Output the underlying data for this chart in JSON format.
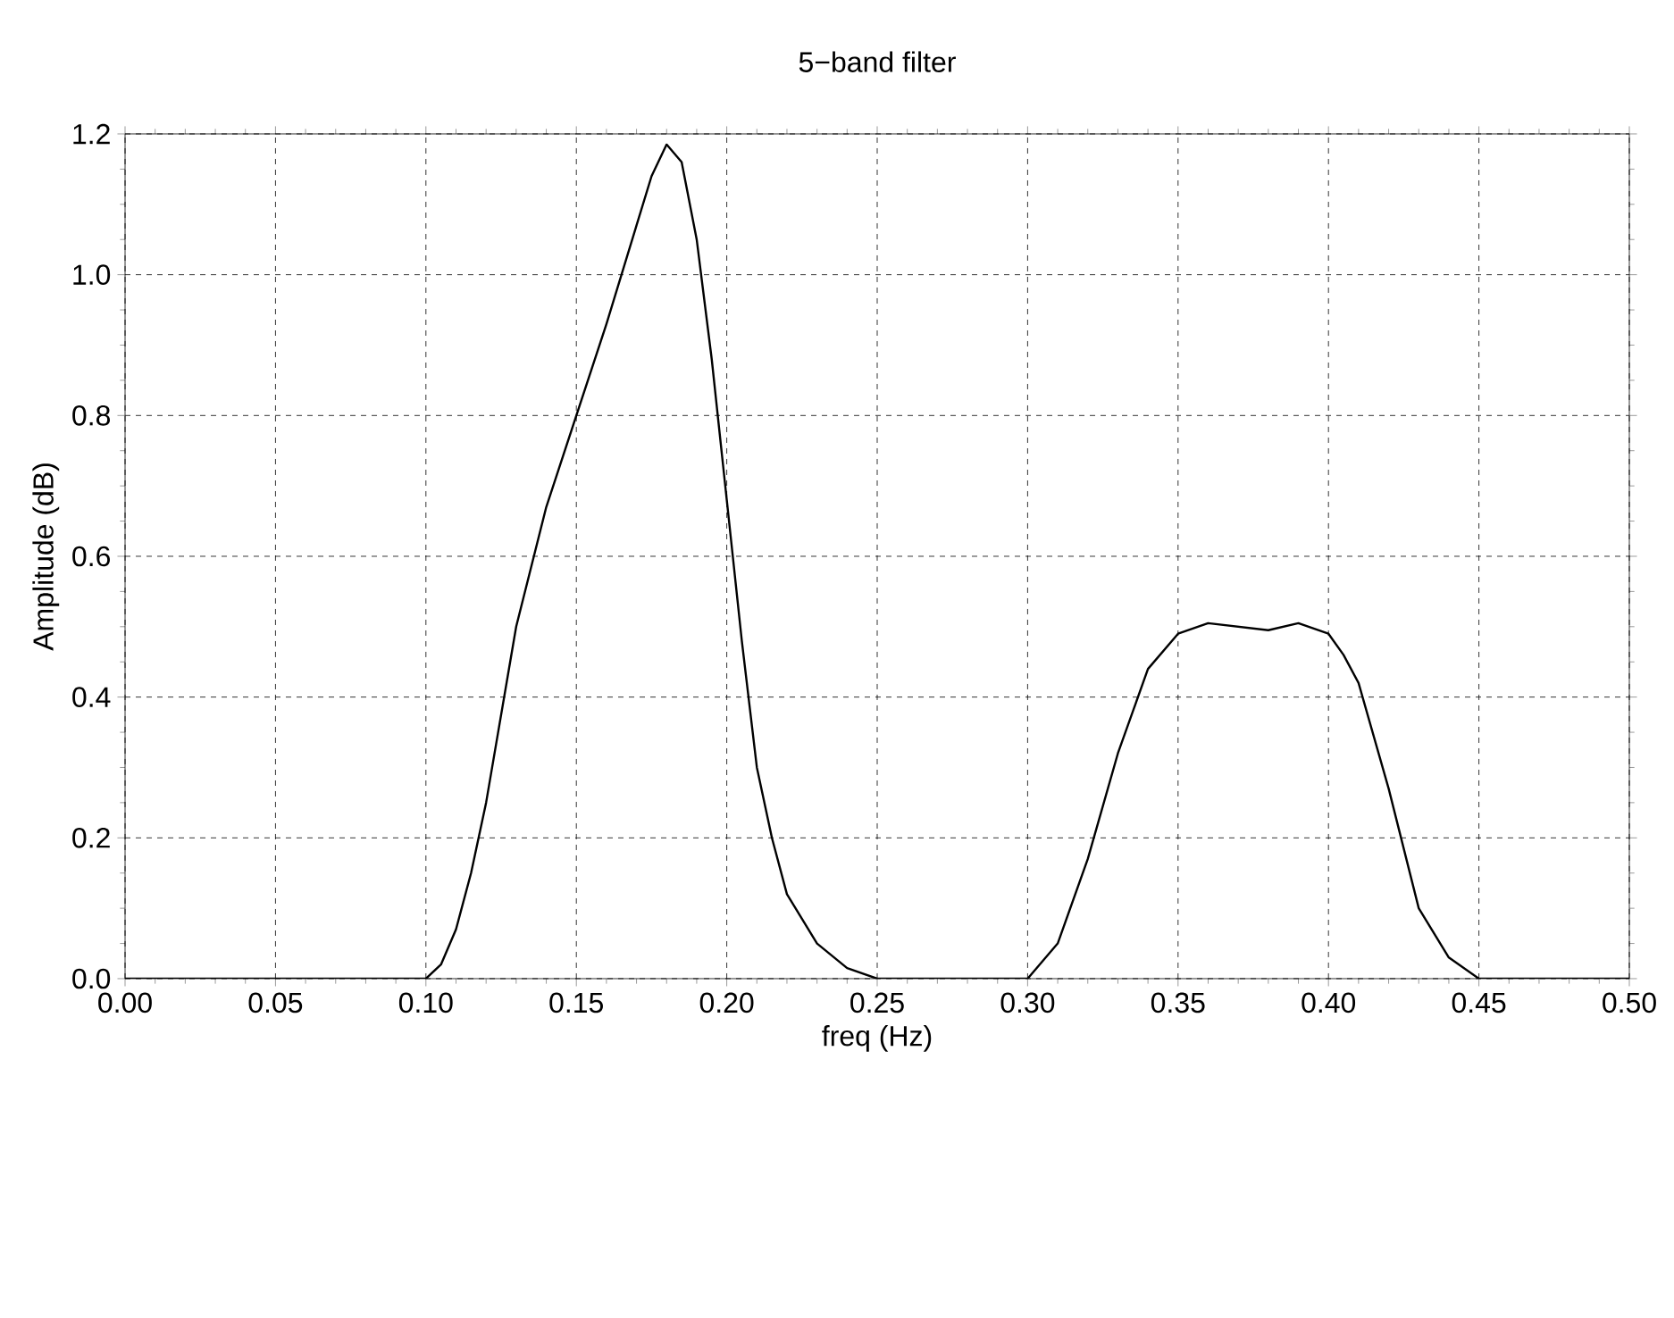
{
  "chart_data": {
    "type": "line",
    "title": "5−band filter",
    "xlabel": "freq (Hz)",
    "ylabel": "Amplitude (dB)",
    "x": [
      0,
      0.05,
      0.1,
      0.105,
      0.11,
      0.115,
      0.12,
      0.13,
      0.14,
      0.15,
      0.16,
      0.17,
      0.175,
      0.18,
      0.185,
      0.19,
      0.195,
      0.2,
      0.205,
      0.21,
      0.215,
      0.22,
      0.23,
      0.24,
      0.25,
      0.3,
      0.31,
      0.32,
      0.33,
      0.34,
      0.35,
      0.36,
      0.37,
      0.38,
      0.39,
      0.4,
      0.405,
      0.41,
      0.42,
      0.43,
      0.44,
      0.45,
      0.5
    ],
    "series": [
      {
        "color": "#000000",
        "values": [
          0,
          0,
          0,
          0.02,
          0.07,
          0.15,
          0.25,
          0.5,
          0.67,
          0.8,
          0.93,
          1.07,
          1.14,
          1.185,
          1.16,
          1.05,
          0.88,
          0.68,
          0.48,
          0.3,
          0.2,
          0.12,
          0.05,
          0.015,
          0,
          0,
          0.05,
          0.17,
          0.32,
          0.44,
          0.49,
          0.505,
          0.5,
          0.495,
          0.505,
          0.49,
          0.46,
          0.42,
          0.27,
          0.1,
          0.03,
          0,
          0
        ]
      }
    ],
    "xlim": [
      0,
      0.5
    ],
    "ylim": [
      0,
      1.2
    ],
    "xticks": [
      {
        "value": 0,
        "label": "0.00"
      },
      0.05,
      {
        "value": 0.1,
        "label": "0.10"
      },
      0.15,
      {
        "value": 0.2,
        "label": "0.20"
      },
      0.25,
      {
        "value": 0.3,
        "label": "0.30"
      },
      0.35,
      {
        "value": 0.4,
        "label": "0.40"
      },
      0.45,
      {
        "value": 0.5,
        "label": "0.50"
      }
    ],
    "yticks": [
      {
        "value": 0,
        "label": "0.0"
      },
      0.2,
      0.4,
      0.6,
      0.8,
      {
        "value": 1,
        "label": "1.0"
      },
      1.2
    ],
    "grid": true,
    "marker": "none",
    "line_style": "solid"
  }
}
